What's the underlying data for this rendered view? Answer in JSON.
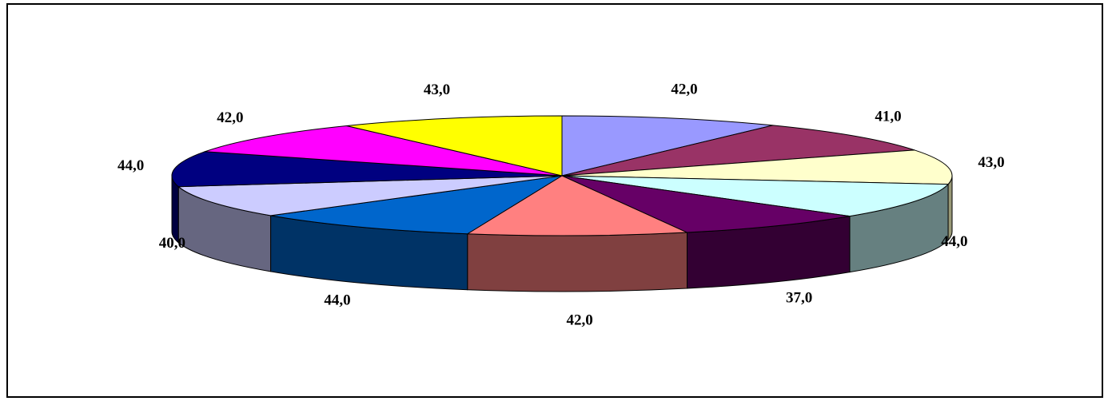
{
  "chart_data": {
    "type": "pie",
    "style": "3d-exploded-none",
    "title": "",
    "slices": [
      {
        "label": "42,0",
        "value": 42.0,
        "top_color": "#9999ff",
        "side_color": "#666699"
      },
      {
        "label": "41,0",
        "value": 41.0,
        "top_color": "#993366",
        "side_color": "#662244"
      },
      {
        "label": "43,0",
        "value": 43.0,
        "top_color": "#ffffcc",
        "side_color": "#999977"
      },
      {
        "label": "44,0",
        "value": 44.0,
        "top_color": "#ccffff",
        "side_color": "#668080"
      },
      {
        "label": "37,0",
        "value": 37.0,
        "top_color": "#660066",
        "side_color": "#330033"
      },
      {
        "label": "42,0",
        "value": 42.0,
        "top_color": "#ff8080",
        "side_color": "#804040"
      },
      {
        "label": "44,0",
        "value": 44.0,
        "top_color": "#0066cc",
        "side_color": "#003366"
      },
      {
        "label": "40,0",
        "value": 40.0,
        "top_color": "#ccccff",
        "side_color": "#666680"
      },
      {
        "label": "44,0",
        "value": 44.0,
        "top_color": "#000080",
        "side_color": "#000040"
      },
      {
        "label": "42,0",
        "value": 42.0,
        "top_color": "#ff00ff",
        "side_color": "#800080"
      },
      {
        "label": "43,0",
        "value": 43.0,
        "top_color": "#ffff00",
        "side_color": "#808000"
      }
    ],
    "legend": "none"
  }
}
